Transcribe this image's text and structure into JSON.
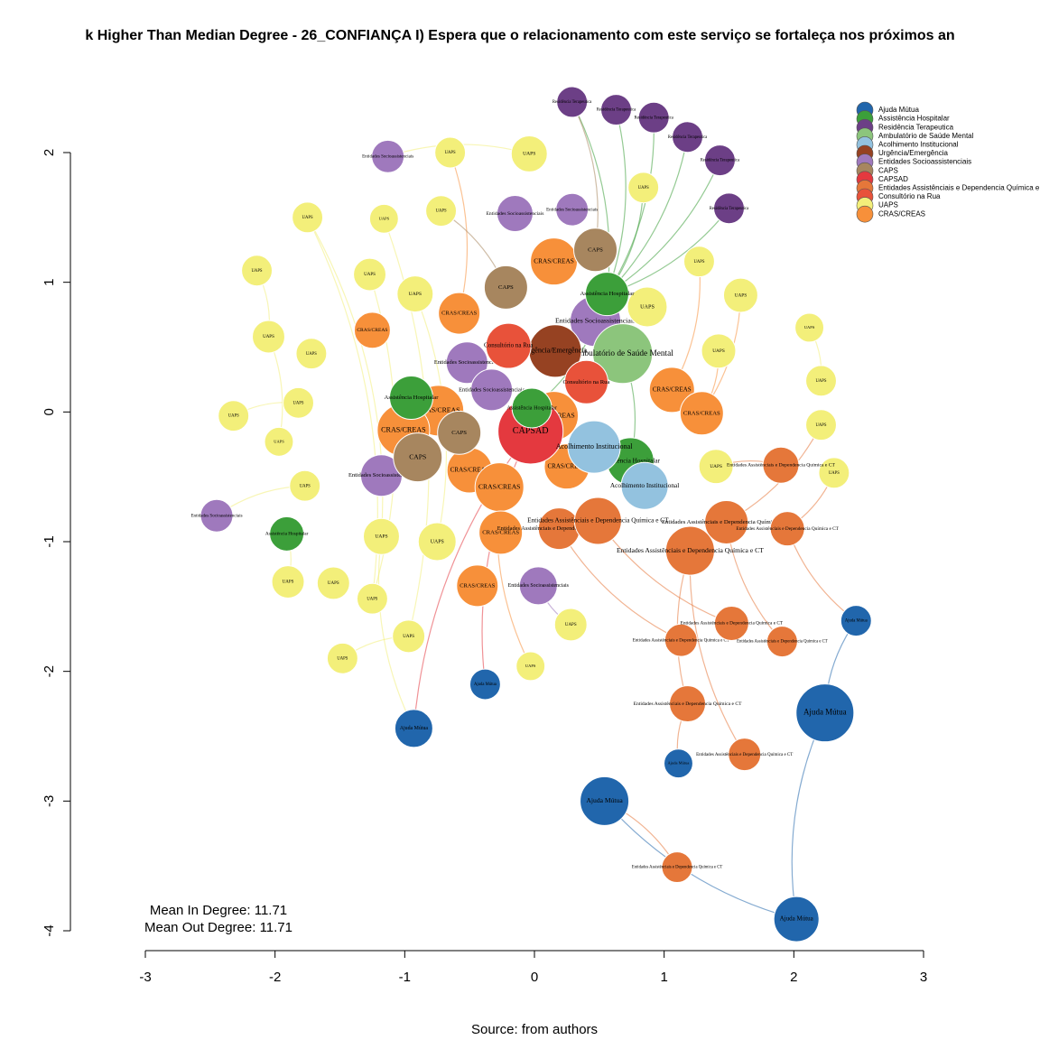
{
  "chart_data": {
    "type": "network",
    "title": "k Higher Than Median Degree - 26_CONFIANÇA I) Espera que o relacionamento com este serviço se fortaleça nos próximos an",
    "annotations": [
      "Mean In Degree: 11.71",
      "Mean Out Degree: 11.71"
    ],
    "caption": "Source: from authors",
    "xlim": [
      -3,
      3
    ],
    "ylim": [
      -4,
      2
    ],
    "xticks": [
      -3,
      -2,
      -1,
      0,
      1,
      2,
      3
    ],
    "yticks": [
      -4,
      -3,
      -2,
      -1,
      0,
      1,
      2
    ],
    "legend": "top-right",
    "groups": [
      {
        "name": "Ajuda Mútua",
        "color": "#2166ac"
      },
      {
        "name": "Assistência Hospitalar",
        "color": "#3c9f3a"
      },
      {
        "name": "Residência Terapeutica",
        "color": "#6c3f86"
      },
      {
        "name": "Ambulatório de Saúde Mental",
        "color": "#8cc57c"
      },
      {
        "name": "Acolhimento Institucional",
        "color": "#93c2df"
      },
      {
        "name": "Urgência/Emergência",
        "color": "#964222"
      },
      {
        "name": "Entidades Socioassistenciais",
        "color": "#9f79bd"
      },
      {
        "name": "CAPS",
        "color": "#a7865f"
      },
      {
        "name": "CAPSAD",
        "color": "#e4393f"
      },
      {
        "name": "Entidades Assistênciais e Dependencia Química e CT",
        "color": "#e5773a"
      },
      {
        "name": "Consultório na Rua",
        "color": "#e8523a"
      },
      {
        "name": "UAPS",
        "color": "#f3ef7a"
      },
      {
        "name": "CRAS/CREAS",
        "color": "#f7903a"
      }
    ],
    "nodes": [
      {
        "x": 0.29,
        "y": 2.39,
        "size": 0.118,
        "group": 2
      },
      {
        "x": 0.63,
        "y": 2.33,
        "size": 0.118,
        "group": 2
      },
      {
        "x": 0.92,
        "y": 2.27,
        "size": 0.118,
        "group": 2
      },
      {
        "x": 1.18,
        "y": 2.12,
        "size": 0.118,
        "group": 2
      },
      {
        "x": 1.43,
        "y": 1.94,
        "size": 0.118,
        "group": 2
      },
      {
        "x": 1.5,
        "y": 1.57,
        "size": 0.118,
        "group": 2
      },
      {
        "x": -1.13,
        "y": 1.97,
        "size": 0.125,
        "group": 6
      },
      {
        "x": -0.15,
        "y": 1.53,
        "size": 0.139,
        "group": 6
      },
      {
        "x": 0.29,
        "y": 1.56,
        "size": 0.125,
        "group": 6
      },
      {
        "x": 0.47,
        "y": 0.7,
        "size": 0.195,
        "group": 6
      },
      {
        "x": -0.52,
        "y": 0.38,
        "size": 0.16,
        "group": 6
      },
      {
        "x": -0.33,
        "y": 0.17,
        "size": 0.16,
        "group": 6
      },
      {
        "x": -1.18,
        "y": -0.49,
        "size": 0.16,
        "group": 6
      },
      {
        "x": -2.45,
        "y": -0.8,
        "size": 0.125,
        "group": 6
      },
      {
        "x": 0.03,
        "y": -1.34,
        "size": 0.146,
        "group": 6
      },
      {
        "x": -0.65,
        "y": 2.0,
        "size": 0.118,
        "group": 11
      },
      {
        "x": -0.04,
        "y": 1.99,
        "size": 0.139,
        "group": 11
      },
      {
        "x": -1.75,
        "y": 1.5,
        "size": 0.118,
        "group": 11
      },
      {
        "x": -1.16,
        "y": 1.49,
        "size": 0.111,
        "group": 11
      },
      {
        "x": -0.72,
        "y": 1.55,
        "size": 0.118,
        "group": 11
      },
      {
        "x": 0.84,
        "y": 1.73,
        "size": 0.118,
        "group": 11
      },
      {
        "x": -2.14,
        "y": 1.09,
        "size": 0.118,
        "group": 11
      },
      {
        "x": -1.27,
        "y": 1.06,
        "size": 0.125,
        "group": 11
      },
      {
        "x": -0.92,
        "y": 0.91,
        "size": 0.139,
        "group": 11
      },
      {
        "x": 0.87,
        "y": 0.81,
        "size": 0.153,
        "group": 11
      },
      {
        "x": 1.27,
        "y": 1.16,
        "size": 0.118,
        "group": 11
      },
      {
        "x": 1.59,
        "y": 0.9,
        "size": 0.132,
        "group": 11
      },
      {
        "x": -2.05,
        "y": 0.58,
        "size": 0.125,
        "group": 11
      },
      {
        "x": -1.72,
        "y": 0.45,
        "size": 0.118,
        "group": 11
      },
      {
        "x": 2.12,
        "y": 0.65,
        "size": 0.111,
        "group": 11
      },
      {
        "x": 1.42,
        "y": 0.47,
        "size": 0.132,
        "group": 11
      },
      {
        "x": 2.21,
        "y": 0.24,
        "size": 0.118,
        "group": 11
      },
      {
        "x": -1.82,
        "y": 0.07,
        "size": 0.118,
        "group": 11
      },
      {
        "x": -2.32,
        "y": -0.03,
        "size": 0.118,
        "group": 11
      },
      {
        "x": 2.21,
        "y": -0.1,
        "size": 0.118,
        "group": 11
      },
      {
        "x": -1.97,
        "y": -0.23,
        "size": 0.111,
        "group": 11
      },
      {
        "x": -1.77,
        "y": -0.57,
        "size": 0.118,
        "group": 11
      },
      {
        "x": 1.4,
        "y": -0.42,
        "size": 0.132,
        "group": 11
      },
      {
        "x": 2.31,
        "y": -0.47,
        "size": 0.118,
        "group": 11
      },
      {
        "x": -1.18,
        "y": -0.96,
        "size": 0.139,
        "group": 11
      },
      {
        "x": -0.75,
        "y": -1.0,
        "size": 0.146,
        "group": 11
      },
      {
        "x": -1.9,
        "y": -1.31,
        "size": 0.125,
        "group": 11
      },
      {
        "x": -1.55,
        "y": -1.32,
        "size": 0.125,
        "group": 11
      },
      {
        "x": -1.25,
        "y": -1.44,
        "size": 0.118,
        "group": 11
      },
      {
        "x": 0.28,
        "y": -1.64,
        "size": 0.125,
        "group": 11
      },
      {
        "x": -0.97,
        "y": -1.73,
        "size": 0.125,
        "group": 11
      },
      {
        "x": -1.48,
        "y": -1.9,
        "size": 0.118,
        "group": 11
      },
      {
        "x": -0.03,
        "y": -1.96,
        "size": 0.111,
        "group": 11
      },
      {
        "x": 0.15,
        "y": 1.16,
        "size": 0.181,
        "group": 12
      },
      {
        "x": -0.58,
        "y": 0.76,
        "size": 0.16,
        "group": 12
      },
      {
        "x": -1.25,
        "y": 0.63,
        "size": 0.139,
        "group": 12
      },
      {
        "x": 1.06,
        "y": 0.17,
        "size": 0.174,
        "group": 12
      },
      {
        "x": 1.29,
        "y": -0.01,
        "size": 0.167,
        "group": 12
      },
      {
        "x": -0.74,
        "y": 0.01,
        "size": 0.195,
        "group": 12
      },
      {
        "x": -1.01,
        "y": -0.14,
        "size": 0.202,
        "group": 12
      },
      {
        "x": 0.15,
        "y": -0.03,
        "size": 0.188,
        "group": 12
      },
      {
        "x": -0.5,
        "y": -0.45,
        "size": 0.174,
        "group": 12
      },
      {
        "x": -0.27,
        "y": -0.58,
        "size": 0.188,
        "group": 12
      },
      {
        "x": 0.25,
        "y": -0.42,
        "size": 0.174,
        "group": 12
      },
      {
        "x": -0.26,
        "y": -0.93,
        "size": 0.167,
        "group": 12
      },
      {
        "x": -0.44,
        "y": -1.34,
        "size": 0.16,
        "group": 12
      },
      {
        "x": 0.68,
        "y": 0.45,
        "size": 0.23,
        "group": 3
      },
      {
        "x": 0.16,
        "y": 0.47,
        "size": 0.202,
        "group": 5
      },
      {
        "x": -0.2,
        "y": 0.51,
        "size": 0.174,
        "group": 10
      },
      {
        "x": 0.4,
        "y": 0.23,
        "size": 0.167,
        "group": 10
      },
      {
        "x": 0.47,
        "y": 1.25,
        "size": 0.167,
        "group": 7
      },
      {
        "x": -0.22,
        "y": 0.96,
        "size": 0.167,
        "group": 7
      },
      {
        "x": -0.58,
        "y": -0.16,
        "size": 0.167,
        "group": 7
      },
      {
        "x": -0.9,
        "y": -0.35,
        "size": 0.188,
        "group": 7
      },
      {
        "x": -0.03,
        "y": -0.15,
        "size": 0.251,
        "group": 8
      },
      {
        "x": 0.56,
        "y": 0.91,
        "size": 0.167,
        "group": 1
      },
      {
        "x": -0.95,
        "y": 0.11,
        "size": 0.167,
        "group": 1
      },
      {
        "x": -0.02,
        "y": 0.03,
        "size": 0.153,
        "group": 1
      },
      {
        "x": 0.74,
        "y": -0.38,
        "size": 0.181,
        "group": 1
      },
      {
        "x": -1.91,
        "y": -0.94,
        "size": 0.132,
        "group": 1
      },
      {
        "x": 0.46,
        "y": -0.27,
        "size": 0.202,
        "group": 4
      },
      {
        "x": 0.85,
        "y": -0.57,
        "size": 0.181,
        "group": 4
      },
      {
        "x": 1.9,
        "y": -0.41,
        "size": 0.139,
        "group": 9
      },
      {
        "x": 0.19,
        "y": -0.9,
        "size": 0.16,
        "group": 9
      },
      {
        "x": 0.49,
        "y": -0.84,
        "size": 0.181,
        "group": 9
      },
      {
        "x": 1.48,
        "y": -0.85,
        "size": 0.167,
        "group": 9
      },
      {
        "x": 1.95,
        "y": -0.9,
        "size": 0.132,
        "group": 9
      },
      {
        "x": 1.2,
        "y": -1.07,
        "size": 0.188,
        "group": 9
      },
      {
        "x": 1.13,
        "y": -1.76,
        "size": 0.125,
        "group": 9
      },
      {
        "x": 1.52,
        "y": -1.63,
        "size": 0.132,
        "group": 9
      },
      {
        "x": 1.91,
        "y": -1.77,
        "size": 0.118,
        "group": 9
      },
      {
        "x": 1.18,
        "y": -2.25,
        "size": 0.139,
        "group": 9
      },
      {
        "x": 1.62,
        "y": -2.64,
        "size": 0.125,
        "group": 9
      },
      {
        "x": 1.1,
        "y": -3.51,
        "size": 0.118,
        "group": 9
      },
      {
        "x": 2.48,
        "y": -1.61,
        "size": 0.118,
        "group": 0
      },
      {
        "x": -0.38,
        "y": -2.1,
        "size": 0.118,
        "group": 0
      },
      {
        "x": -0.93,
        "y": -2.44,
        "size": 0.146,
        "group": 0
      },
      {
        "x": 2.24,
        "y": -2.32,
        "size": 0.223,
        "group": 0
      },
      {
        "x": 1.11,
        "y": -2.71,
        "size": 0.111,
        "group": 0
      },
      {
        "x": 0.54,
        "y": -3.0,
        "size": 0.188,
        "group": 0
      },
      {
        "x": 2.02,
        "y": -3.91,
        "size": 0.174,
        "group": 0
      }
    ],
    "edges": [
      [
        0,
        70
      ],
      [
        1,
        70
      ],
      [
        2,
        70
      ],
      [
        3,
        70
      ],
      [
        4,
        70
      ],
      [
        5,
        70
      ],
      [
        0,
        65
      ],
      [
        20,
        70
      ],
      [
        61,
        73
      ],
      [
        9,
        72
      ],
      [
        17,
        39
      ],
      [
        17,
        43
      ],
      [
        21,
        27
      ],
      [
        22,
        43
      ],
      [
        18,
        45
      ],
      [
        23,
        40
      ],
      [
        95,
        94
      ],
      [
        95,
        92
      ],
      [
        92,
        89
      ],
      [
        90,
        69
      ],
      [
        91,
        69
      ],
      [
        91,
        39
      ],
      [
        94,
        88
      ],
      [
        93,
        86
      ],
      [
        87,
        82
      ],
      [
        84,
        79
      ],
      [
        83,
        78
      ],
      [
        13,
        36
      ],
      [
        33,
        32
      ],
      [
        74,
        41
      ],
      [
        46,
        45
      ],
      [
        44,
        14
      ],
      [
        47,
        57
      ],
      [
        27,
        35
      ],
      [
        6,
        16
      ],
      [
        15,
        49
      ],
      [
        19,
        66
      ],
      [
        25,
        51
      ],
      [
        26,
        52
      ],
      [
        29,
        31
      ],
      [
        30,
        52
      ],
      [
        34,
        80
      ],
      [
        38,
        81
      ],
      [
        37,
        77
      ],
      [
        86,
        82
      ],
      [
        85,
        80
      ],
      [
        89,
        81
      ]
    ]
  }
}
